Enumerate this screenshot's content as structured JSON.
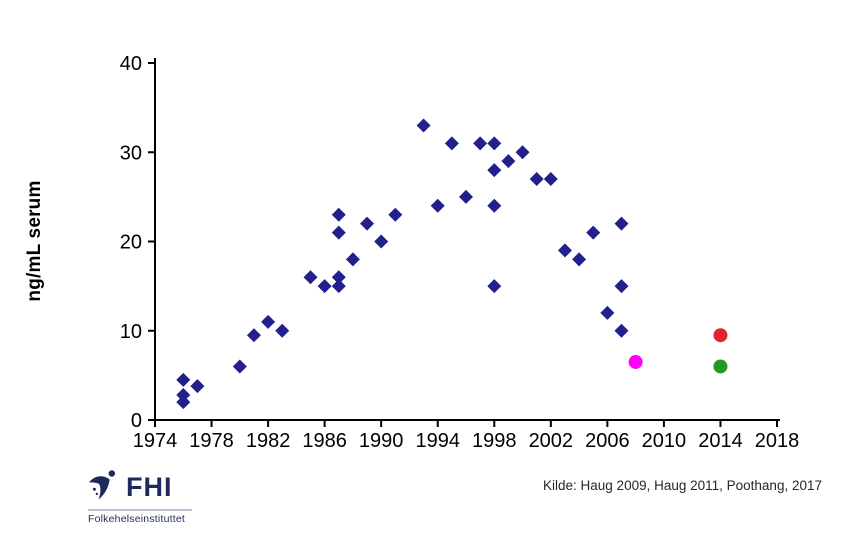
{
  "page": {
    "background": "#ffffff"
  },
  "chart_data": {
    "type": "scatter",
    "title": "",
    "xlabel": "",
    "ylabel": "ng/mL serum",
    "xlim": [
      1974,
      2018
    ],
    "ylim": [
      0,
      40
    ],
    "x_ticks": [
      1974,
      1978,
      1982,
      1986,
      1990,
      1994,
      1998,
      2002,
      2006,
      2010,
      2014,
      2018
    ],
    "y_ticks": [
      0,
      10,
      20,
      30,
      40
    ],
    "grid": false,
    "legend": "none",
    "axis_color": "#000000",
    "series": [
      {
        "name": "serum-levels-diamond",
        "marker": "diamond",
        "color": "#22208C",
        "points": [
          [
            1976,
            4.5
          ],
          [
            1976,
            2.8
          ],
          [
            1976,
            2.0
          ],
          [
            1977,
            3.8
          ],
          [
            1980,
            6
          ],
          [
            1981,
            9.5
          ],
          [
            1982,
            11
          ],
          [
            1983,
            10
          ],
          [
            1985,
            16
          ],
          [
            1986,
            15
          ],
          [
            1987,
            23
          ],
          [
            1987,
            21
          ],
          [
            1987,
            16
          ],
          [
            1987,
            15
          ],
          [
            1988,
            18
          ],
          [
            1989,
            22
          ],
          [
            1990,
            20
          ],
          [
            1991,
            23
          ],
          [
            1993,
            33
          ],
          [
            1994,
            24
          ],
          [
            1995,
            31
          ],
          [
            1996,
            25
          ],
          [
            1997,
            31
          ],
          [
            1998,
            31
          ],
          [
            1998,
            28
          ],
          [
            1998,
            24
          ],
          [
            1998,
            15
          ],
          [
            1999,
            29
          ],
          [
            2000,
            30
          ],
          [
            2001,
            27
          ],
          [
            2002,
            27
          ],
          [
            2003,
            19
          ],
          [
            2004,
            18
          ],
          [
            2005,
            21
          ],
          [
            2006,
            12
          ],
          [
            2007,
            22
          ],
          [
            2007,
            15
          ],
          [
            2007,
            10
          ]
        ]
      },
      {
        "name": "magenta-circle-2008",
        "marker": "circle",
        "color": "#FF00FF",
        "points": [
          [
            2008,
            6.5
          ]
        ]
      },
      {
        "name": "red-circle-2014",
        "marker": "circle",
        "color": "#E02430",
        "points": [
          [
            2014,
            9.5
          ]
        ]
      },
      {
        "name": "green-circle-2014",
        "marker": "circle",
        "color": "#229B22",
        "points": [
          [
            2014,
            6
          ]
        ]
      }
    ]
  },
  "footer": {
    "source_text": "Kilde: Haug 2009, Haug 2011, Poothang, 2017",
    "logo": {
      "acronym": "FHI",
      "full_name": "Folkehelseinstituttet",
      "color": "#1F2A5B"
    }
  }
}
